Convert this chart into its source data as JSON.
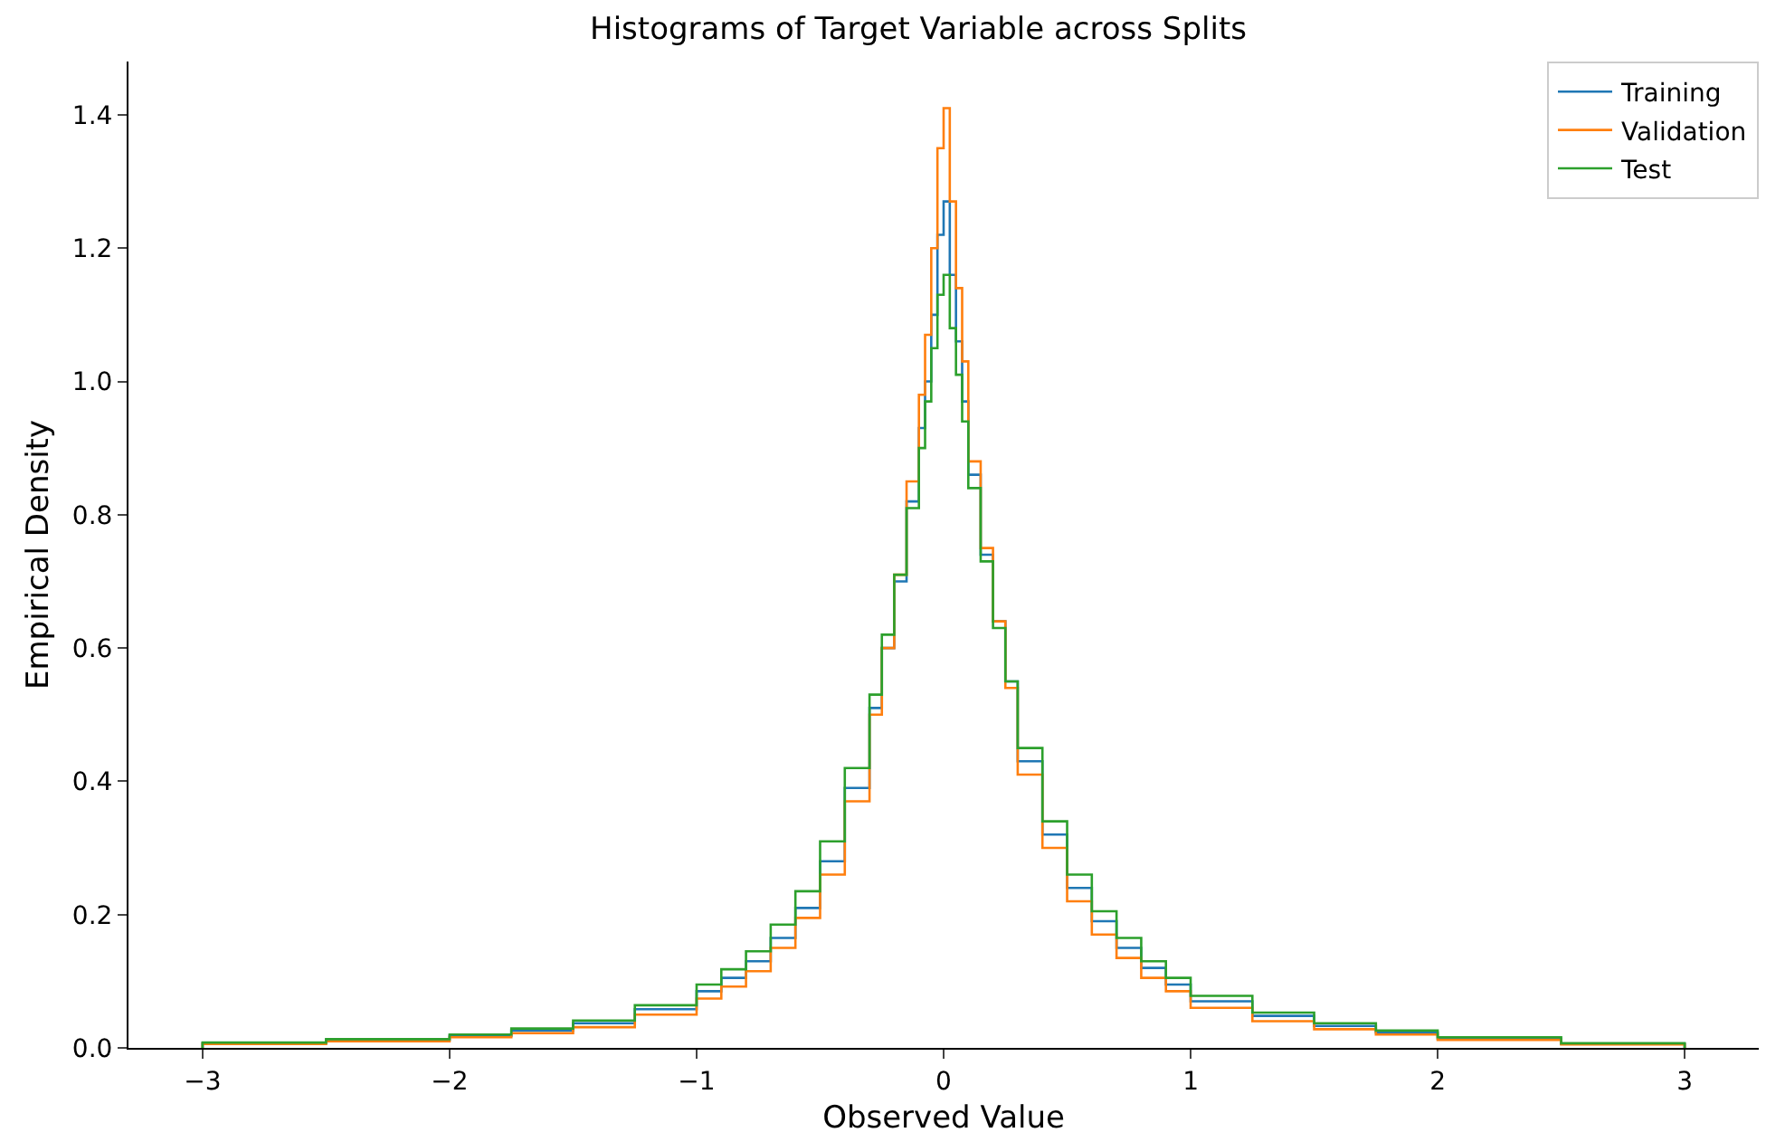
{
  "chart_data": {
    "type": "histogram",
    "title": "Histograms of Target Variable across Splits",
    "xlabel": "Observed Value",
    "ylabel": "Empirical Density",
    "bins": [
      -3,
      -2.5,
      -2,
      -1.75,
      -1.5,
      -1.25,
      -1,
      -0.9,
      -0.8,
      -0.7,
      -0.6,
      -0.5,
      -0.4,
      -0.3,
      -0.25,
      -0.2,
      -0.15,
      -0.1,
      -0.075,
      -0.05,
      -0.025,
      0,
      0.025,
      0.05,
      0.075,
      0.1,
      0.15,
      0.2,
      0.25,
      0.3,
      0.4,
      0.5,
      0.6,
      0.7,
      0.8,
      0.9,
      1,
      1.25,
      1.5,
      1.75,
      2,
      2.5,
      3
    ],
    "series": [
      {
        "name": "Training",
        "color": "#1f77b4",
        "values": [
          0.007,
          0.012,
          0.018,
          0.026,
          0.037,
          0.058,
          0.085,
          0.105,
          0.13,
          0.165,
          0.21,
          0.28,
          0.39,
          0.51,
          0.6,
          0.7,
          0.82,
          0.93,
          1.0,
          1.1,
          1.22,
          1.27,
          1.16,
          1.06,
          0.97,
          0.86,
          0.74,
          0.64,
          0.55,
          0.43,
          0.32,
          0.24,
          0.19,
          0.15,
          0.12,
          0.095,
          0.07,
          0.048,
          0.033,
          0.023,
          0.014,
          0.006
        ]
      },
      {
        "name": "Validation",
        "color": "#ff7f0e",
        "values": [
          0.006,
          0.01,
          0.016,
          0.022,
          0.031,
          0.05,
          0.074,
          0.092,
          0.115,
          0.15,
          0.195,
          0.26,
          0.37,
          0.5,
          0.6,
          0.71,
          0.85,
          0.98,
          1.07,
          1.2,
          1.35,
          1.41,
          1.27,
          1.14,
          1.03,
          0.88,
          0.75,
          0.64,
          0.54,
          0.41,
          0.3,
          0.22,
          0.17,
          0.135,
          0.105,
          0.085,
          0.06,
          0.04,
          0.028,
          0.02,
          0.012,
          0.005
        ]
      },
      {
        "name": "Test",
        "color": "#2ca02c",
        "values": [
          0.008,
          0.013,
          0.02,
          0.029,
          0.041,
          0.064,
          0.095,
          0.118,
          0.145,
          0.185,
          0.235,
          0.31,
          0.42,
          0.53,
          0.62,
          0.71,
          0.81,
          0.9,
          0.97,
          1.05,
          1.13,
          1.16,
          1.08,
          1.01,
          0.94,
          0.84,
          0.73,
          0.63,
          0.55,
          0.45,
          0.34,
          0.26,
          0.205,
          0.165,
          0.13,
          0.105,
          0.078,
          0.053,
          0.037,
          0.026,
          0.016,
          0.007
        ]
      }
    ],
    "xlim": [
      -3.3,
      3.3
    ],
    "ylim": [
      0,
      1.48
    ],
    "xticks": [
      {
        "value": -3,
        "label": "−3"
      },
      {
        "value": -2,
        "label": "−2"
      },
      {
        "value": -1,
        "label": "−1"
      },
      0,
      1,
      2,
      3
    ],
    "yticks": [
      {
        "value": 0,
        "label": "0.0"
      },
      0.2,
      0.4,
      0.6,
      0.8,
      {
        "value": 1,
        "label": "1.0"
      },
      1.2,
      1.4
    ],
    "legend": "top right"
  }
}
